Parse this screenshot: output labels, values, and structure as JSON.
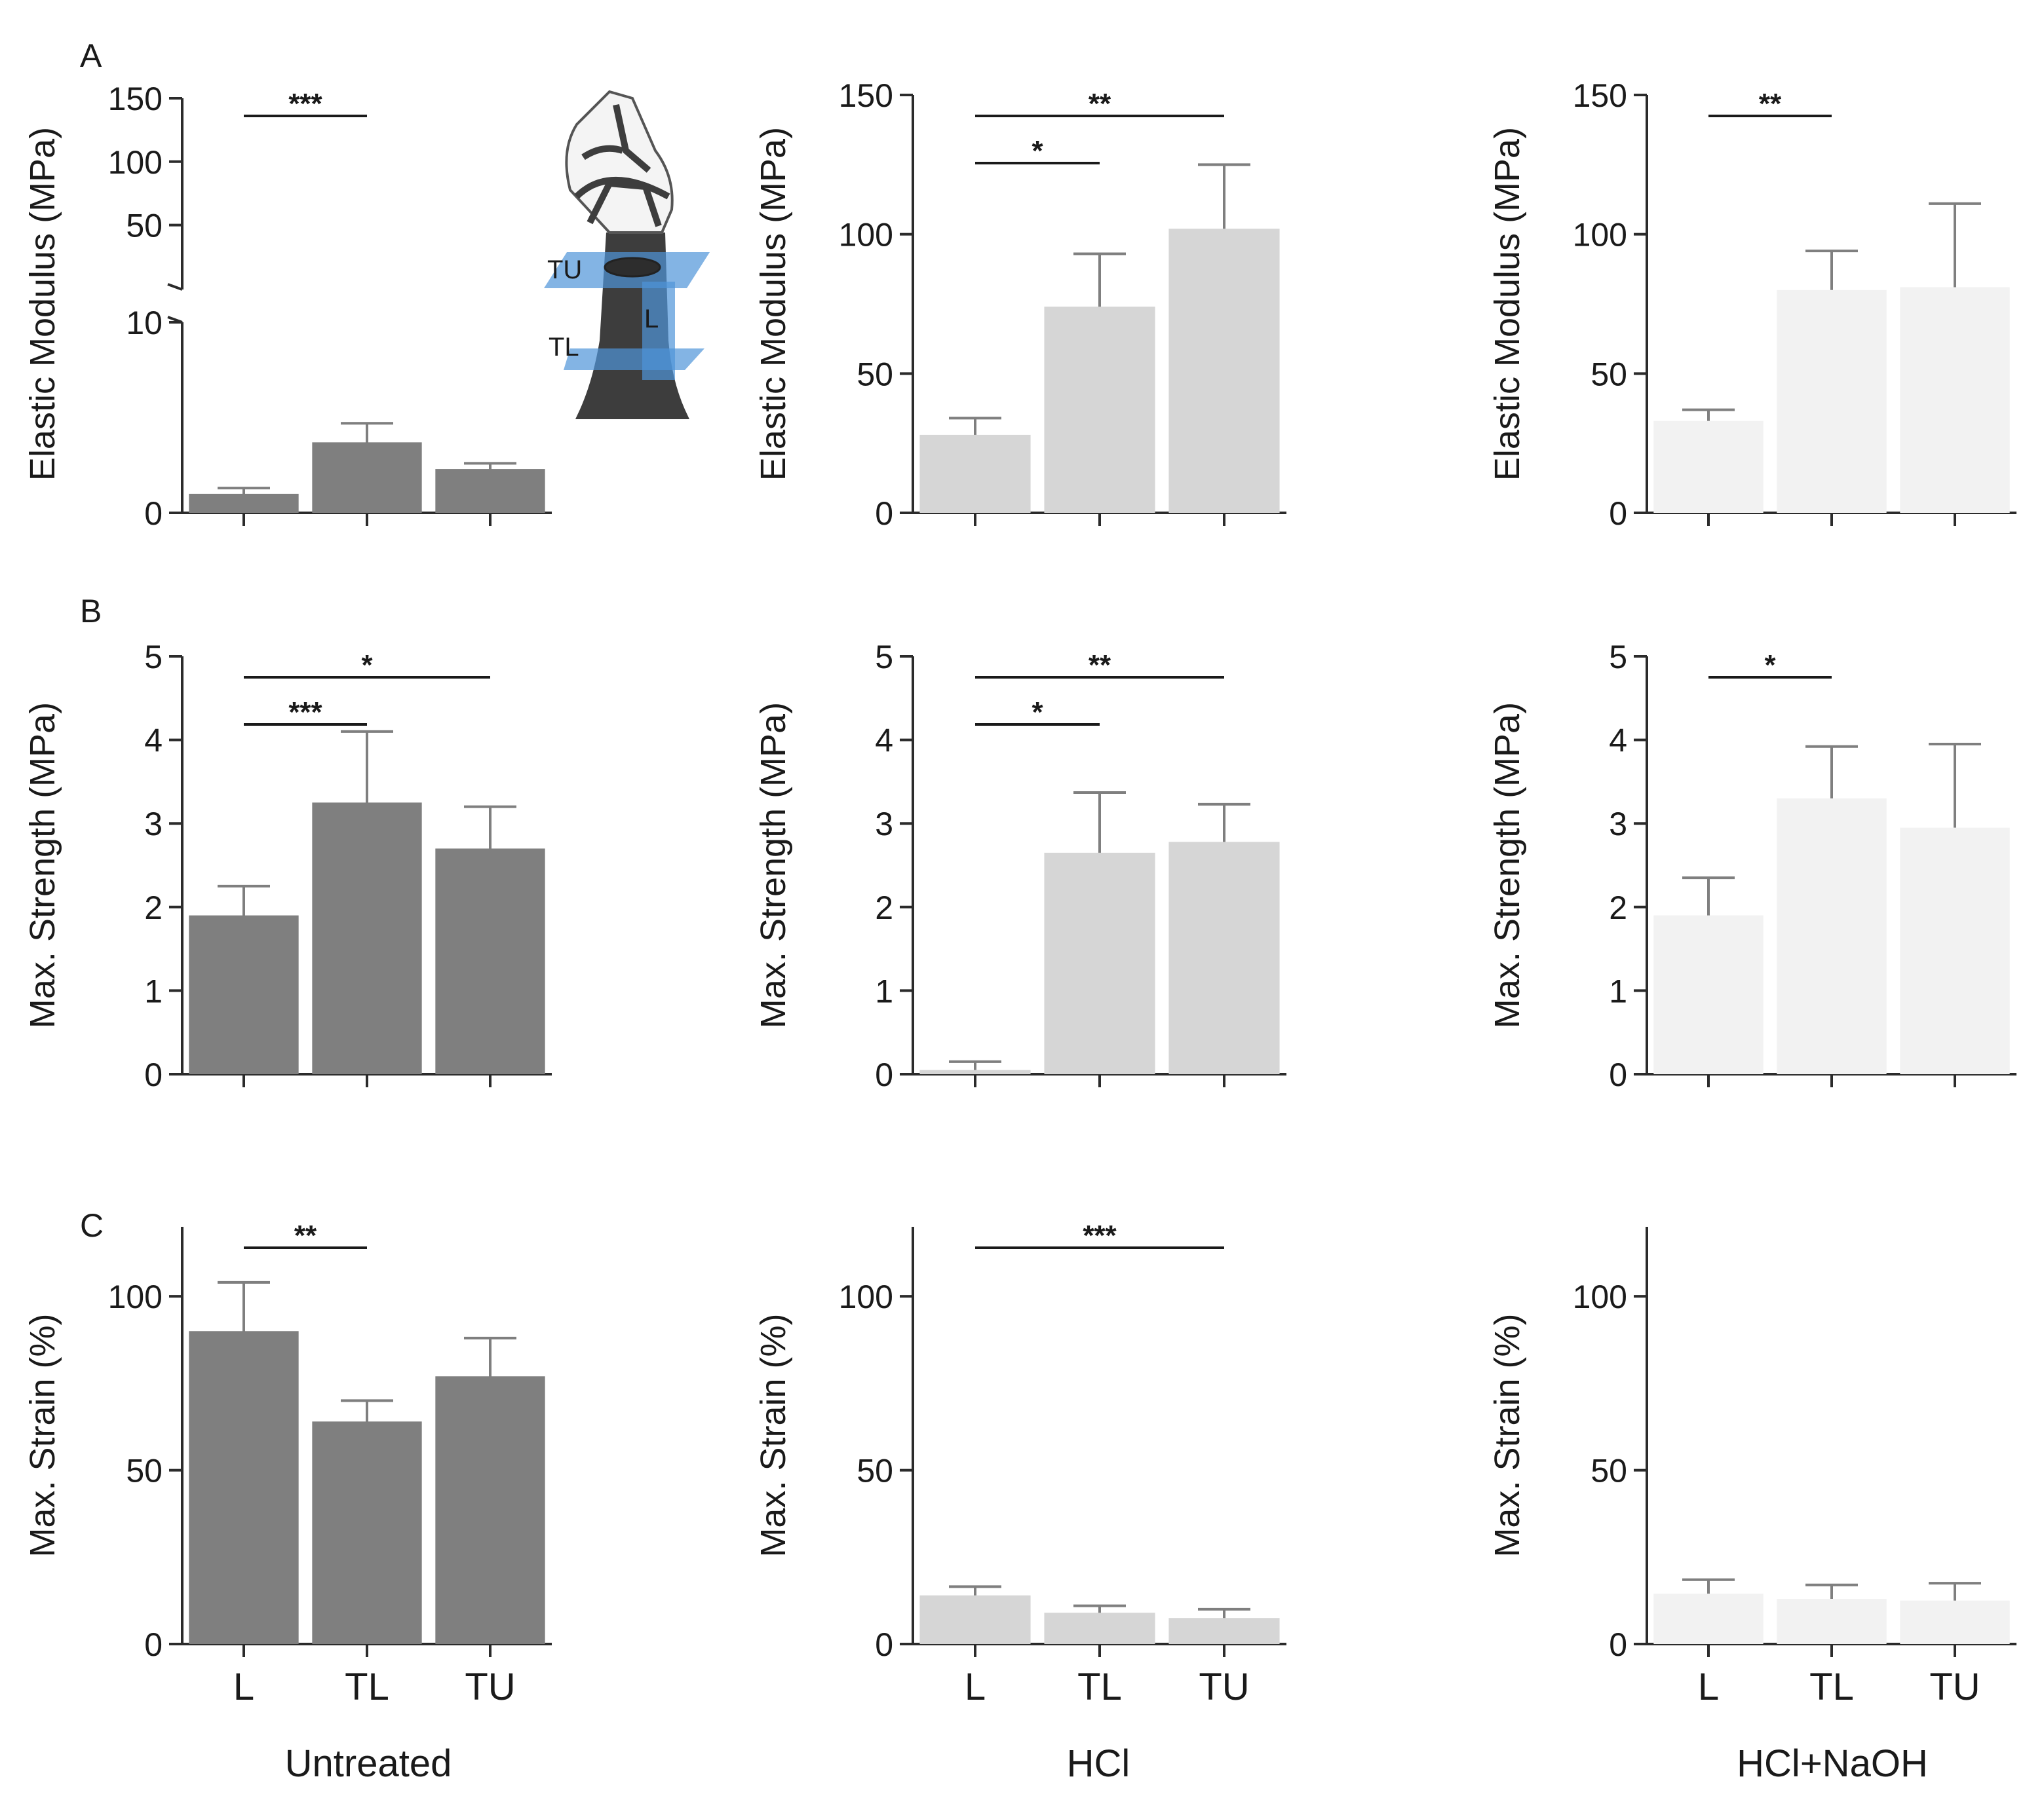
{
  "figure": {
    "panel_labels": [
      "A",
      "B",
      "C"
    ],
    "group_labels": [
      "Untreated",
      "HCl",
      "HCl+NaOH"
    ],
    "category_labels": [
      "L",
      "TL",
      "TU"
    ]
  },
  "inset": {
    "labels": [
      "TU",
      "L",
      "TL"
    ]
  },
  "colors": {
    "Untreated": "#7f7f7f",
    "HCl": "#d6d6d6",
    "HCl+NaOH": "#f2f2f2",
    "axis": "#2b2b2b",
    "error": "#7f7f7f",
    "inset_plane": "#4f94d9"
  },
  "chart_data": [
    {
      "id": "A-untreated",
      "type": "bar",
      "panel": "A",
      "group": "Untreated",
      "ylabel": "Elastic Modulus (MPa)",
      "categories": [
        "L",
        "TL",
        "TU"
      ],
      "values": [
        1.0,
        3.7,
        2.3
      ],
      "errors": [
        0.3,
        1.0,
        0.3
      ],
      "axis_break": true,
      "lower_ylim": [
        0,
        10
      ],
      "lower_yticks": [
        0,
        10
      ],
      "upper_ylim": [
        0,
        150
      ],
      "upper_yticks": [
        50,
        100,
        150
      ],
      "significance": [
        {
          "from": "L",
          "to": "TL",
          "label": "***"
        }
      ]
    },
    {
      "id": "A-hcl",
      "type": "bar",
      "panel": "A",
      "group": "HCl",
      "ylabel": "Elastic Modulus (MPa)",
      "categories": [
        "L",
        "TL",
        "TU"
      ],
      "values": [
        28,
        74,
        102
      ],
      "errors": [
        6,
        19,
        23
      ],
      "ylim": [
        0,
        150
      ],
      "yticks": [
        0,
        50,
        100,
        150
      ],
      "significance": [
        {
          "from": "L",
          "to": "TU",
          "label": "**"
        },
        {
          "from": "L",
          "to": "TL",
          "label": "*"
        }
      ]
    },
    {
      "id": "A-hclnaoh",
      "type": "bar",
      "panel": "A",
      "group": "HCl+NaOH",
      "ylabel": "Elastic Modulus (MPa)",
      "categories": [
        "L",
        "TL",
        "TU"
      ],
      "values": [
        33,
        80,
        81
      ],
      "errors": [
        4,
        14,
        30
      ],
      "ylim": [
        0,
        150
      ],
      "yticks": [
        0,
        50,
        100,
        150
      ],
      "significance": [
        {
          "from": "L",
          "to": "TL",
          "label": "**"
        }
      ]
    },
    {
      "id": "B-untreated",
      "type": "bar",
      "panel": "B",
      "group": "Untreated",
      "ylabel": "Max. Strength (MPa)",
      "categories": [
        "L",
        "TL",
        "TU"
      ],
      "values": [
        1.9,
        3.25,
        2.7
      ],
      "errors": [
        0.35,
        0.85,
        0.5
      ],
      "ylim": [
        0,
        5
      ],
      "yticks": [
        0,
        1,
        2,
        3,
        4,
        5
      ],
      "significance": [
        {
          "from": "L",
          "to": "TU",
          "label": "*"
        },
        {
          "from": "L",
          "to": "TL",
          "label": "***"
        }
      ]
    },
    {
      "id": "B-hcl",
      "type": "bar",
      "panel": "B",
      "group": "HCl",
      "ylabel": "Max. Strength (MPa)",
      "categories": [
        "L",
        "TL",
        "TU"
      ],
      "values": [
        0.05,
        2.65,
        2.78
      ],
      "errors": [
        0.1,
        0.72,
        0.45
      ],
      "ylim": [
        0,
        5
      ],
      "yticks": [
        0,
        1,
        2,
        3,
        4,
        5
      ],
      "significance": [
        {
          "from": "L",
          "to": "TU",
          "label": "**"
        },
        {
          "from": "L",
          "to": "TL",
          "label": "*"
        }
      ]
    },
    {
      "id": "B-hclnaoh",
      "type": "bar",
      "panel": "B",
      "group": "HCl+NaOH",
      "ylabel": "Max. Strength (MPa)",
      "categories": [
        "L",
        "TL",
        "TU"
      ],
      "values": [
        1.9,
        3.3,
        2.95
      ],
      "errors": [
        0.45,
        0.62,
        1.0
      ],
      "ylim": [
        0,
        5
      ],
      "yticks": [
        0,
        1,
        2,
        3,
        4,
        5
      ],
      "significance": [
        {
          "from": "L",
          "to": "TL",
          "label": "*"
        }
      ]
    },
    {
      "id": "C-untreated",
      "type": "bar",
      "panel": "C",
      "group": "Untreated",
      "ylabel": "Max. Strain (%)",
      "categories": [
        "L",
        "TL",
        "TU"
      ],
      "values": [
        90,
        64,
        77
      ],
      "errors": [
        14,
        6,
        11
      ],
      "ylim": [
        0,
        120
      ],
      "yticks": [
        0,
        50,
        100
      ],
      "significance": [
        {
          "from": "L",
          "to": "TL",
          "label": "**"
        }
      ]
    },
    {
      "id": "C-hcl",
      "type": "bar",
      "panel": "C",
      "group": "HCl",
      "ylabel": "Max. Strain (%)",
      "categories": [
        "L",
        "TL",
        "TU"
      ],
      "values": [
        14,
        9,
        7.5
      ],
      "errors": [
        2.5,
        2,
        2.5
      ],
      "ylim": [
        0,
        120
      ],
      "yticks": [
        0,
        50,
        100
      ],
      "significance": [
        {
          "from": "L",
          "to": "TU",
          "label": "***"
        }
      ]
    },
    {
      "id": "C-hclnaoh",
      "type": "bar",
      "panel": "C",
      "group": "HCl+NaOH",
      "ylabel": "Max. Strain (%)",
      "categories": [
        "L",
        "TL",
        "TU"
      ],
      "values": [
        14.5,
        13,
        12.5
      ],
      "errors": [
        4,
        4,
        5
      ],
      "ylim": [
        0,
        120
      ],
      "yticks": [
        0,
        50,
        100
      ],
      "significance": []
    }
  ]
}
